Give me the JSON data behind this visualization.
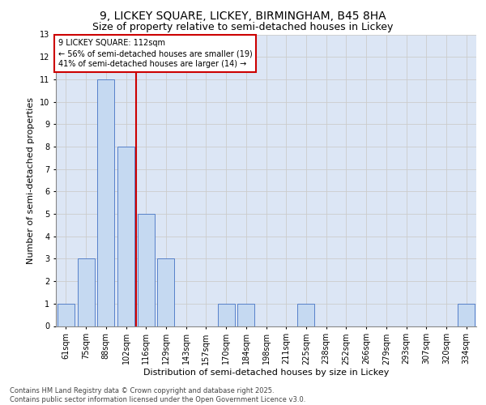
{
  "title_line1": "9, LICKEY SQUARE, LICKEY, BIRMINGHAM, B45 8HA",
  "title_line2": "Size of property relative to semi-detached houses in Lickey",
  "xlabel": "Distribution of semi-detached houses by size in Lickey",
  "ylabel": "Number of semi-detached properties",
  "footer_line1": "Contains HM Land Registry data © Crown copyright and database right 2025.",
  "footer_line2": "Contains public sector information licensed under the Open Government Licence v3.0.",
  "categories": [
    "61sqm",
    "75sqm",
    "88sqm",
    "102sqm",
    "116sqm",
    "129sqm",
    "143sqm",
    "157sqm",
    "170sqm",
    "184sqm",
    "198sqm",
    "211sqm",
    "225sqm",
    "238sqm",
    "252sqm",
    "266sqm",
    "279sqm",
    "293sqm",
    "307sqm",
    "320sqm",
    "334sqm"
  ],
  "values": [
    1,
    3,
    11,
    8,
    5,
    3,
    0,
    0,
    1,
    1,
    0,
    0,
    1,
    0,
    0,
    0,
    0,
    0,
    0,
    0,
    1
  ],
  "bar_color": "#c5d9f1",
  "bar_edge_color": "#4472c4",
  "vline_x_index": 3,
  "vline_color": "#cc0000",
  "annotation_text": "9 LICKEY SQUARE: 112sqm\n← 56% of semi-detached houses are smaller (19)\n41% of semi-detached houses are larger (14) →",
  "annotation_box_color": "#ffffff",
  "annotation_box_edge_color": "#cc0000",
  "ylim": [
    0,
    13
  ],
  "yticks": [
    0,
    1,
    2,
    3,
    4,
    5,
    6,
    7,
    8,
    9,
    10,
    11,
    12,
    13
  ],
  "grid_color": "#cccccc",
  "background_color": "#dce6f5",
  "title_fontsize": 10,
  "subtitle_fontsize": 9,
  "axis_label_fontsize": 8,
  "tick_fontsize": 7,
  "annotation_fontsize": 7,
  "footer_fontsize": 6
}
